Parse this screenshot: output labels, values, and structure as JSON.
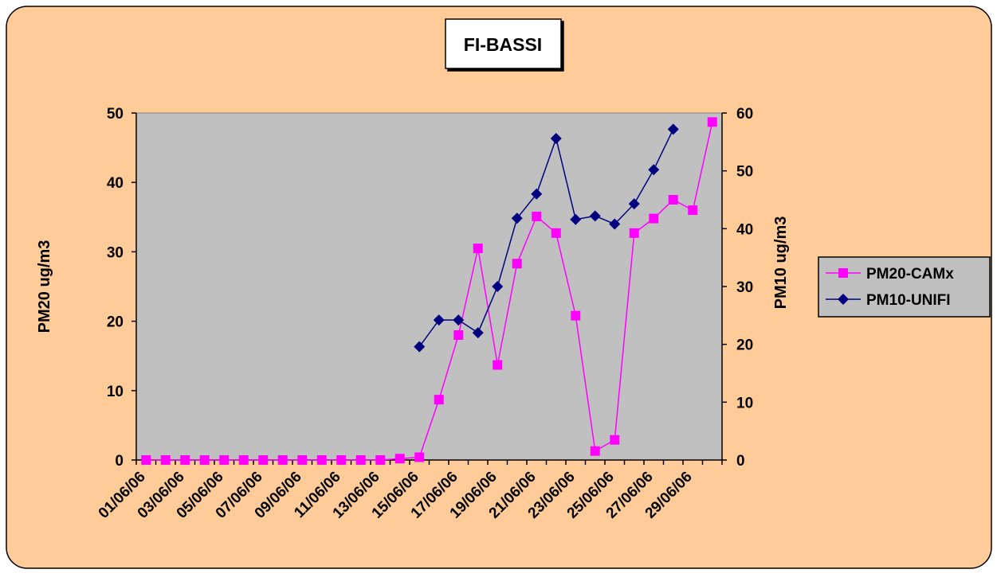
{
  "chart_data": {
    "type": "line",
    "title": "FI-BASSI",
    "ylabel_left": "PM20 ug/m3",
    "ylabel_right": "PM10 ug/m3",
    "ylim_left": [
      0,
      50
    ],
    "ylim_right": [
      0,
      60
    ],
    "yticks_left": [
      "0",
      "10",
      "20",
      "30",
      "40",
      "50"
    ],
    "yticks_right": [
      "0",
      "10",
      "20",
      "30",
      "40",
      "50",
      "60"
    ],
    "x_labels": [
      "01/06/06",
      "03/06/06",
      "05/06/06",
      "07/06/06",
      "09/06/06",
      "11/06/06",
      "13/06/06",
      "15/06/06",
      "17/06/06",
      "19/06/06",
      "21/06/06",
      "23/06/06",
      "25/06/06",
      "27/06/06",
      "29/06/06"
    ],
    "x_dates": [
      "01/06/06",
      "02/06/06",
      "03/06/06",
      "04/06/06",
      "05/06/06",
      "06/06/06",
      "07/06/06",
      "08/06/06",
      "09/06/06",
      "10/06/06",
      "11/06/06",
      "12/06/06",
      "13/06/06",
      "14/06/06",
      "15/06/06",
      "16/06/06",
      "17/06/06",
      "18/06/06",
      "19/06/06",
      "20/06/06",
      "21/06/06",
      "22/06/06",
      "23/06/06",
      "24/06/06",
      "25/06/06",
      "26/06/06",
      "27/06/06",
      "28/06/06",
      "29/06/06",
      "30/06/06"
    ],
    "grid": false,
    "legend_position": "right",
    "series": [
      {
        "name": "PM20-CAMx",
        "axis": "left",
        "color": "#ff00ff",
        "marker": "square",
        "values": [
          0,
          0,
          0,
          0,
          0,
          0,
          0,
          0,
          0,
          0,
          0,
          0,
          0,
          0.2,
          0.4,
          8.7,
          18,
          30.5,
          13.7,
          28.3,
          35.1,
          32.7,
          20.8,
          1.3,
          2.9,
          32.7,
          34.8,
          37.5,
          36,
          48.7
        ]
      },
      {
        "name": "PM10-UNIFI",
        "axis": "right",
        "color": "#000080",
        "marker": "diamond",
        "values": [
          null,
          null,
          null,
          null,
          null,
          null,
          null,
          null,
          null,
          null,
          null,
          null,
          null,
          null,
          19.6,
          24.2,
          24.2,
          22,
          30,
          41.8,
          46,
          55.6,
          41.6,
          42.2,
          40.8,
          44.3,
          50.2,
          57.2,
          null,
          null
        ]
      }
    ],
    "colors": {
      "chart_background": "#ffcc99",
      "plot_background": "#c0c0c0",
      "legend_background": "#c0c0c0",
      "title_box_background": "#ffffff"
    }
  }
}
